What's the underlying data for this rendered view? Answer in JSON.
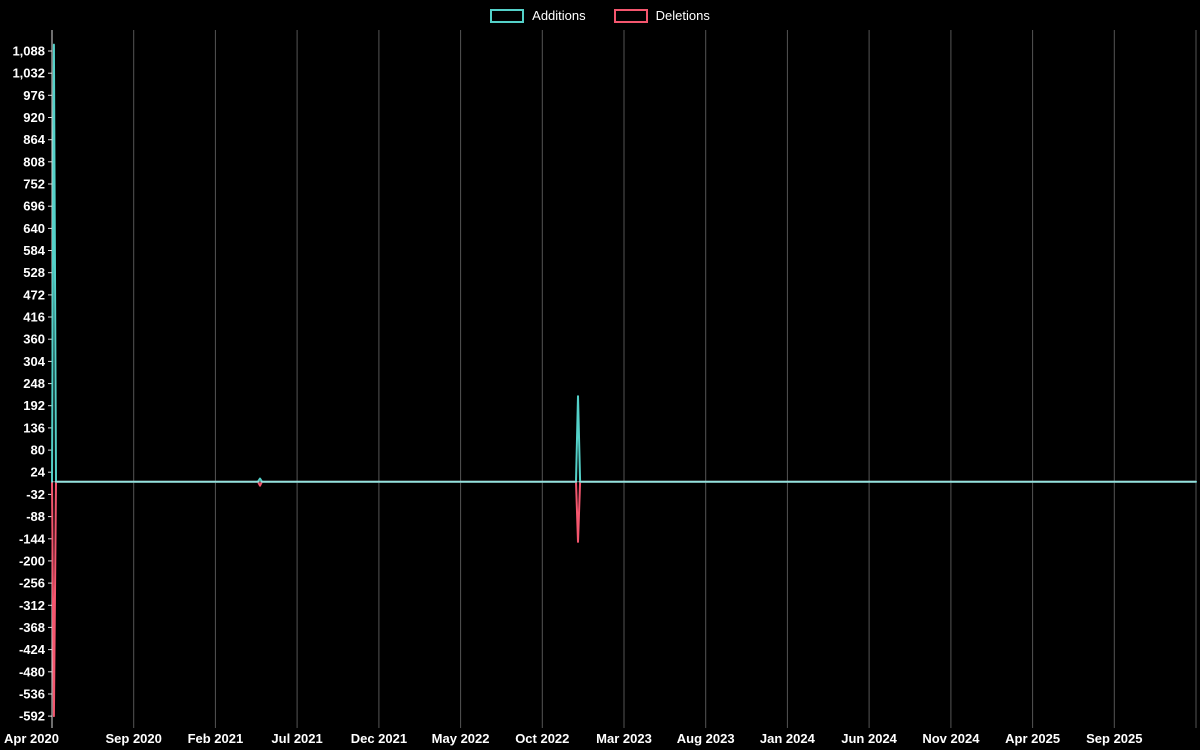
{
  "page": {
    "background": "#000000",
    "text_color": "#ffffff"
  },
  "chart_data": {
    "type": "line",
    "title": "",
    "legend_position": "top-center",
    "grid": "vertical-only",
    "zero_line": true,
    "colors": {
      "background": "#000000",
      "text": "#ffffff",
      "grid": "#555555",
      "axis": "#dddddd",
      "zero_line": "rgba(255,255,255,0.5)",
      "additions": "#54d1c9",
      "deletions": "#f4566e"
    },
    "legend": [
      {
        "label": "Additions",
        "color": "#54d1c9"
      },
      {
        "label": "Deletions",
        "color": "#f4566e"
      }
    ],
    "x_tick_labels": [
      "Apr 2020",
      "Sep 2020",
      "Feb 2021",
      "Jul 2021",
      "Dec 2021",
      "May 2022",
      "Oct 2022",
      "Mar 2023",
      "Aug 2023",
      "Jan 2024",
      "Jun 2024",
      "Nov 2024",
      "Apr 2025",
      "Sep 2025"
    ],
    "y_ticks": [
      1088,
      1032,
      976,
      920,
      864,
      808,
      752,
      696,
      640,
      584,
      528,
      472,
      416,
      360,
      304,
      248,
      192,
      136,
      80,
      24,
      -32,
      -88,
      -144,
      -200,
      -256,
      -312,
      -368,
      -424,
      -480,
      -536,
      -592
    ],
    "ylim": [
      -622,
      1141
    ],
    "series": [
      {
        "name": "Additions",
        "color": "#54d1c9",
        "points": [
          [
            0,
            0
          ],
          [
            0.0017,
            1104
          ],
          [
            0.0035,
            0
          ],
          [
            0.18,
            0
          ],
          [
            0.1818,
            8
          ],
          [
            0.1836,
            0
          ],
          [
            0.458,
            0
          ],
          [
            0.4598,
            216
          ],
          [
            0.4616,
            0
          ],
          [
            1,
            0
          ]
        ]
      },
      {
        "name": "Deletions",
        "color": "#f4566e",
        "points": [
          [
            0,
            0
          ],
          [
            0.0017,
            -592
          ],
          [
            0.0035,
            0
          ],
          [
            0.18,
            0
          ],
          [
            0.1818,
            -10
          ],
          [
            0.1836,
            0
          ],
          [
            0.458,
            0
          ],
          [
            0.4598,
            -152
          ],
          [
            0.4616,
            0
          ],
          [
            1,
            0
          ]
        ]
      }
    ],
    "events": [
      {
        "x_label": "Apr 2020",
        "additions": 1104,
        "deletions": -592
      },
      {
        "x_label": "Jun 2021",
        "additions": 8,
        "deletions": -10
      },
      {
        "x_label": "Nov 2022",
        "additions": 216,
        "deletions": -152
      }
    ]
  }
}
